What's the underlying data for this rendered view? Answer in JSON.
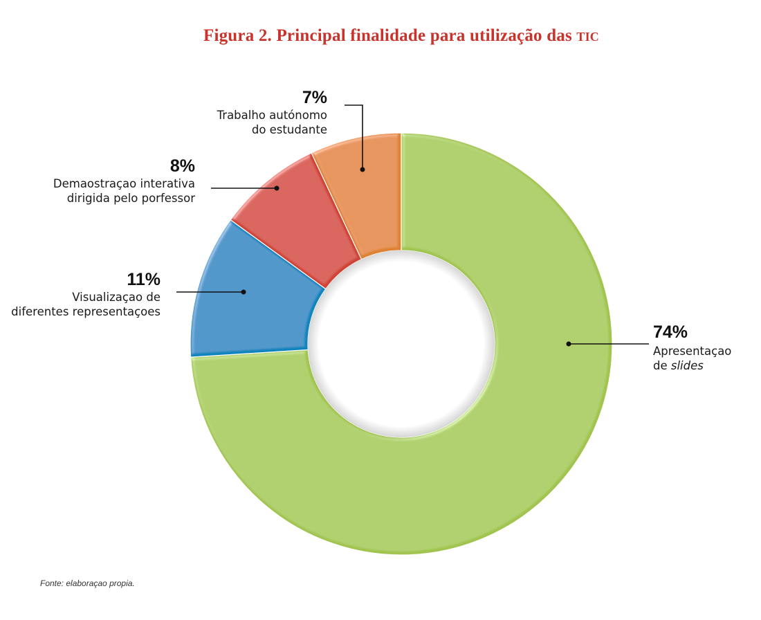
{
  "figure": {
    "title_prefix": "Figura 2. Principal finalidade para utilização das ",
    "title_tic": "tic",
    "source": "Fonte: elaboraçao propia."
  },
  "colors": {
    "title": "#c8332b",
    "slides": "#a1c44f",
    "estudante": "#dd8232",
    "professor": "#cf4336",
    "representacoes": "#0a84bd"
  },
  "chart_data": {
    "type": "pie",
    "variant": "donut",
    "title": "Figura 2. Principal finalidade para utilização das TIC",
    "slices": [
      {
        "label": "Apresentaçao de slides",
        "label_lines": [
          "Apresentaçao",
          "de ",
          "slides"
        ],
        "value": 74,
        "value_label": "74%",
        "color": "#a1c44f"
      },
      {
        "label": "Visualizaçao de diferentes representaçoes",
        "label_lines": [
          "Visualizaçao de",
          "diferentes representaçoes"
        ],
        "value": 11,
        "value_label": "11%",
        "color": "#0a84bd"
      },
      {
        "label": "Demaostraçao interativa dirigida pelo porfessor",
        "label_lines": [
          "Demaostraçao interativa",
          "dirigida pelo porfessor"
        ],
        "value": 8,
        "value_label": "8%",
        "color": "#cf4336"
      },
      {
        "label": "Trabalho autónomo do estudante",
        "label_lines": [
          "Trabalho autónomo",
          "do estudante"
        ],
        "value": 7,
        "value_label": "7%",
        "color": "#dd8232"
      }
    ],
    "start_at": "top",
    "direction": "clockwise"
  }
}
